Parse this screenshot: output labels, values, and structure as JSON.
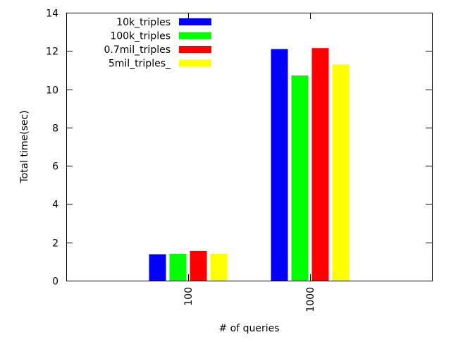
{
  "chart_data": {
    "type": "bar",
    "categories": [
      "100",
      "1000"
    ],
    "series": [
      {
        "name": "10k_triples",
        "color": "#0000ff",
        "values": [
          1.38,
          12.1
        ]
      },
      {
        "name": "100k_triples",
        "color": "#00ff00",
        "values": [
          1.4,
          10.72
        ]
      },
      {
        "name": "0.7mil_triples",
        "color": "#ff0000",
        "values": [
          1.55,
          12.15
        ]
      },
      {
        "name": "5mil_triples_",
        "color": "#ffff00",
        "values": [
          1.4,
          11.3
        ]
      }
    ],
    "xlabel": "# of queries",
    "ylabel": "Total time(sec)",
    "ylim": [
      0,
      14
    ],
    "yticks": [
      "0",
      "2",
      "4",
      "6",
      "8",
      "10",
      "12",
      "14"
    ],
    "x_tick_label_rotation": "vertical",
    "grid": false,
    "legend_position": "top-left"
  }
}
